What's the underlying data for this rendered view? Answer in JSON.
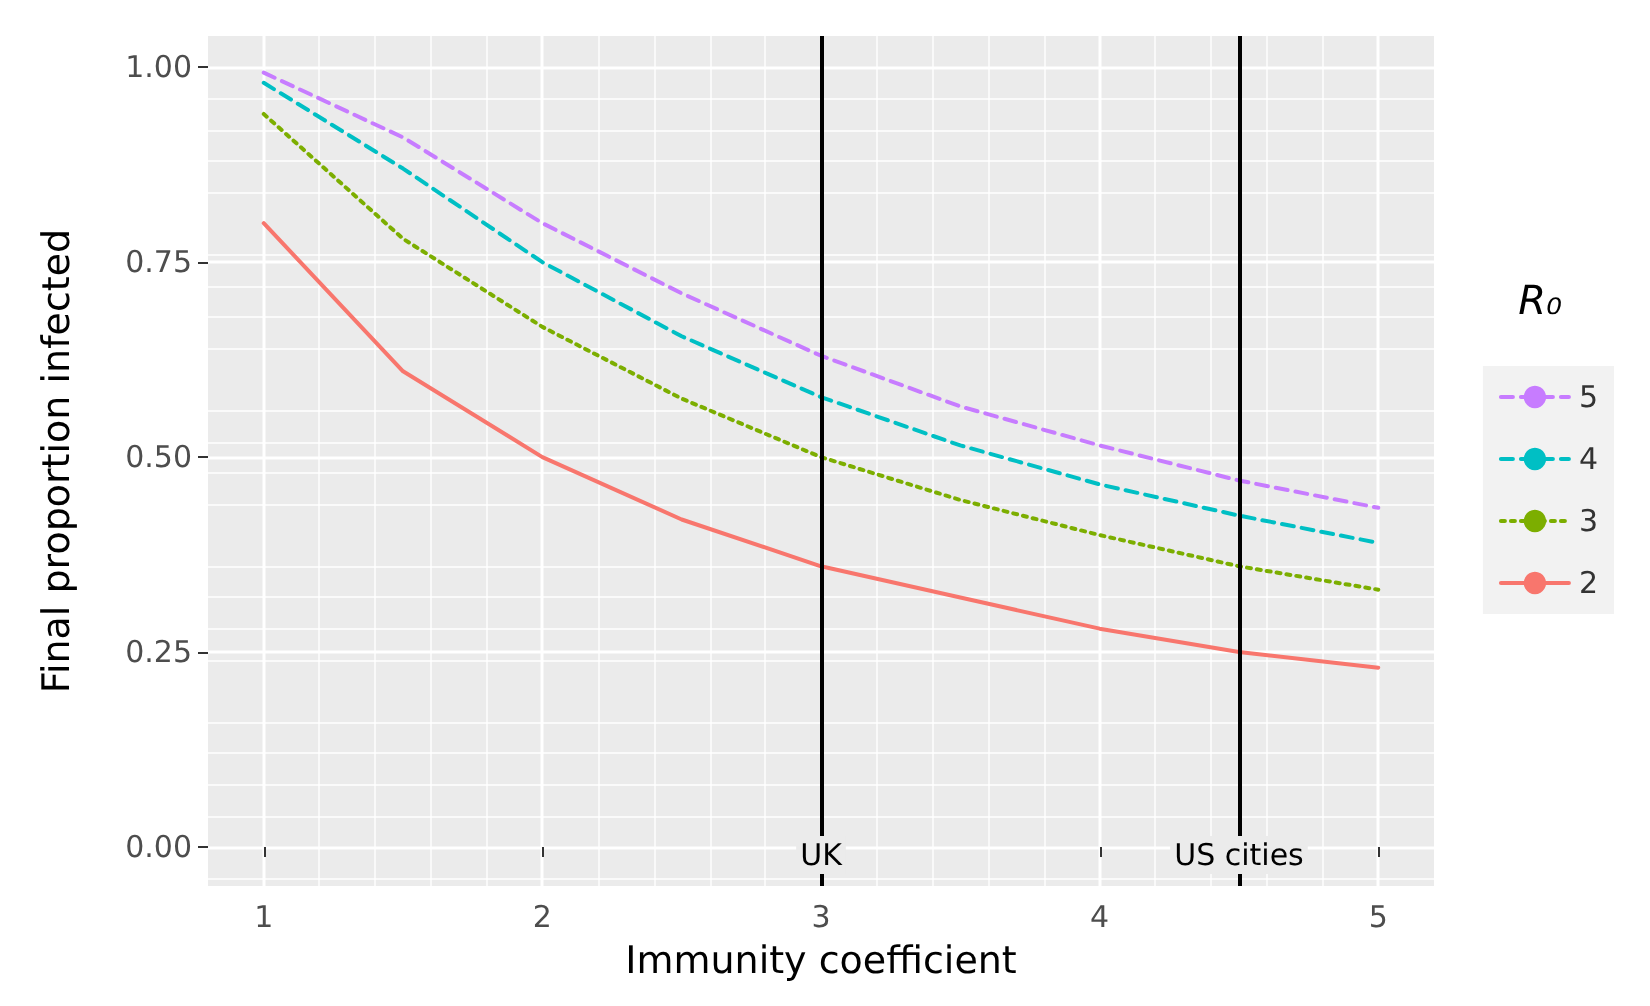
{
  "chart_data": {
    "type": "line",
    "xlabel": "Immunity coefficient",
    "ylabel": "Final proportion infected",
    "legend_title": "R₀",
    "x": [
      1,
      1.5,
      2,
      2.5,
      3,
      3.5,
      4,
      4.5,
      5
    ],
    "series": [
      {
        "name": "5",
        "color": "#c77cff",
        "line_style": "dashed",
        "values": [
          0.993,
          0.91,
          0.8,
          0.71,
          0.63,
          0.565,
          0.515,
          0.47,
          0.435
        ]
      },
      {
        "name": "4",
        "color": "#00bfc4",
        "line_style": "dashed",
        "values": [
          0.98,
          0.87,
          0.75,
          0.655,
          0.577,
          0.515,
          0.465,
          0.425,
          0.39
        ]
      },
      {
        "name": "3",
        "color": "#7cae00",
        "line_style": "dotted",
        "values": [
          0.94,
          0.78,
          0.667,
          0.575,
          0.5,
          0.445,
          0.4,
          0.36,
          0.33
        ]
      },
      {
        "name": "2",
        "color": "#f8766d",
        "line_style": "solid",
        "values": [
          0.8,
          0.61,
          0.5,
          0.42,
          0.36,
          0.32,
          0.28,
          0.25,
          0.23
        ]
      }
    ],
    "xlim": [
      0.8,
      5.2
    ],
    "xticks": [
      1,
      2,
      3,
      4,
      5
    ],
    "ylim": [
      -0.05,
      1.04
    ],
    "yticks": [
      {
        "value": 0,
        "label": "0.00"
      },
      {
        "value": 0.25,
        "label": "0.25"
      },
      {
        "value": 0.5,
        "label": "0.50"
      },
      {
        "value": 0.75,
        "label": "0.75"
      },
      {
        "value": 1,
        "label": "1.00"
      }
    ],
    "ref_lines": [
      {
        "axis": "x",
        "value": 3,
        "label": "UK",
        "color": "#000000"
      },
      {
        "axis": "x",
        "value": 4.5,
        "label": "US cities",
        "color": "#000000"
      }
    ],
    "grid": true,
    "legend": "right",
    "marker": "none"
  }
}
